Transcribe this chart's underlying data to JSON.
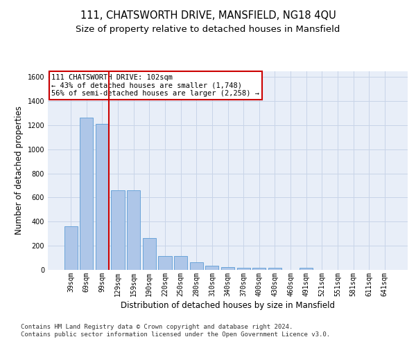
{
  "title": "111, CHATSWORTH DRIVE, MANSFIELD, NG18 4QU",
  "subtitle": "Size of property relative to detached houses in Mansfield",
  "xlabel": "Distribution of detached houses by size in Mansfield",
  "ylabel": "Number of detached properties",
  "categories": [
    "39sqm",
    "69sqm",
    "99sqm",
    "129sqm",
    "159sqm",
    "190sqm",
    "220sqm",
    "250sqm",
    "280sqm",
    "310sqm",
    "340sqm",
    "370sqm",
    "400sqm",
    "430sqm",
    "460sqm",
    "491sqm",
    "521sqm",
    "551sqm",
    "581sqm",
    "611sqm",
    "641sqm"
  ],
  "values": [
    360,
    1260,
    1210,
    660,
    660,
    265,
    112,
    112,
    65,
    35,
    22,
    20,
    15,
    15,
    0,
    20,
    0,
    0,
    0,
    0,
    0
  ],
  "bar_color": "#aec6e8",
  "bar_edge_color": "#5b9bd5",
  "grid_color": "#c8d4e8",
  "background_color": "#e8eef8",
  "red_line_color": "#cc0000",
  "annotation_text": "111 CHATSWORTH DRIVE: 102sqm\n← 43% of detached houses are smaller (1,748)\n56% of semi-detached houses are larger (2,258) →",
  "annotation_box_color": "#cc0000",
  "ylim": [
    0,
    1650
  ],
  "yticks": [
    0,
    200,
    400,
    600,
    800,
    1000,
    1200,
    1400,
    1600
  ],
  "footer_text": "Contains HM Land Registry data © Crown copyright and database right 2024.\nContains public sector information licensed under the Open Government Licence v3.0.",
  "title_fontsize": 10.5,
  "subtitle_fontsize": 9.5,
  "xlabel_fontsize": 8.5,
  "ylabel_fontsize": 8.5,
  "tick_fontsize": 7,
  "annotation_fontsize": 7.5,
  "footer_fontsize": 6.5
}
